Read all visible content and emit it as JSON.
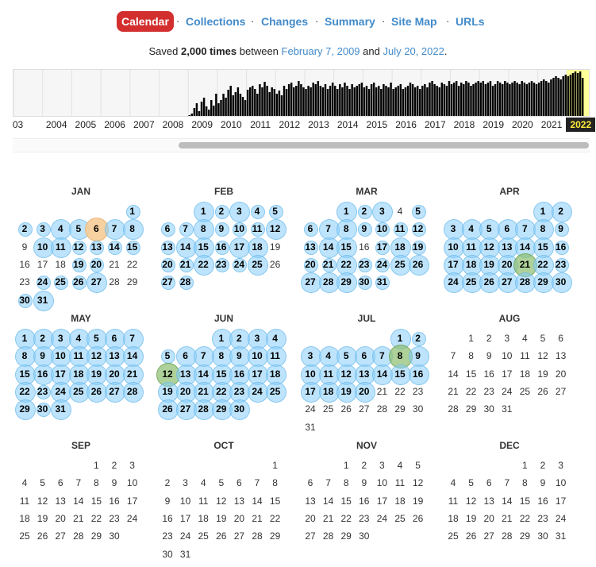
{
  "nav": {
    "items": [
      {
        "label": "Calendar",
        "active": true
      },
      {
        "label": "Collections"
      },
      {
        "label": "Changes"
      },
      {
        "label": "Summary"
      },
      {
        "label": "Site Map"
      },
      {
        "label": "URLs"
      }
    ],
    "separator": "·"
  },
  "saved": {
    "prefix": "Saved",
    "count": "2,000 times",
    "between": "between",
    "start_date": "February 7, 2009",
    "and": "and",
    "end_date": "July 20, 2022",
    "suffix": "."
  },
  "timeline": {
    "years": [
      "03",
      "2004",
      "2005",
      "2006",
      "2007",
      "2008",
      "2009",
      "2010",
      "2011",
      "2012",
      "2013",
      "2014",
      "2015",
      "2016",
      "2017",
      "2018",
      "2019",
      "2020",
      "2021",
      "2022"
    ],
    "selected_year": "2022",
    "bar_color": "#000000",
    "highlight_color": "#ffff99"
  },
  "colors": {
    "bubble_blue": "#87cefa",
    "bubble_green": "#8cbe6e",
    "bubble_orange": "#f7cc96",
    "link": "#428bca",
    "active_tab": "#d32f2f"
  },
  "calendar": {
    "months": [
      {
        "name": "JAN",
        "start": 6,
        "days": 31,
        "captured": [
          1,
          2,
          3,
          4,
          5,
          6,
          7,
          8,
          10,
          11,
          12,
          13,
          14,
          15,
          19,
          20,
          24,
          25,
          26,
          27,
          30,
          31
        ],
        "big": [
          6,
          4,
          5,
          7,
          8,
          10,
          11,
          27,
          31
        ],
        "green": [],
        "orange": [
          6
        ]
      },
      {
        "name": "FEB",
        "start": 2,
        "days": 28,
        "captured": [
          1,
          2,
          3,
          4,
          5,
          6,
          7,
          8,
          9,
          10,
          11,
          12,
          13,
          14,
          15,
          16,
          17,
          18,
          20,
          21,
          22,
          23,
          24,
          25,
          27,
          28
        ],
        "big": [
          1,
          3,
          8,
          12,
          14,
          15,
          17,
          18,
          22,
          25
        ],
        "green": [],
        "orange": []
      },
      {
        "name": "MAR",
        "start": 2,
        "days": 31,
        "captured": [
          1,
          2,
          3,
          5,
          6,
          7,
          8,
          9,
          10,
          11,
          12,
          13,
          14,
          15,
          17,
          18,
          19,
          20,
          21,
          22,
          23,
          24,
          25,
          26,
          27,
          28,
          29,
          30,
          31
        ],
        "big": [
          1,
          3,
          7,
          8,
          14,
          15,
          18,
          22,
          25,
          26,
          27,
          28,
          29
        ],
        "green": [],
        "orange": []
      },
      {
        "name": "APR",
        "start": 5,
        "days": 30,
        "captured": [
          1,
          2,
          3,
          4,
          5,
          6,
          7,
          8,
          9,
          10,
          11,
          12,
          13,
          14,
          15,
          16,
          17,
          18,
          19,
          20,
          21,
          22,
          23,
          24,
          25,
          26,
          27,
          28,
          29,
          30
        ],
        "big": [
          1,
          2,
          3,
          4,
          5,
          6,
          7,
          8,
          10,
          11,
          12,
          13,
          14,
          15,
          17,
          18,
          19,
          20,
          21,
          22,
          24,
          25,
          26,
          27,
          28,
          29,
          30
        ],
        "green": [
          21
        ],
        "orange": []
      },
      {
        "name": "MAY",
        "start": 0,
        "days": 31,
        "captured": [
          1,
          2,
          3,
          4,
          5,
          6,
          7,
          8,
          9,
          10,
          11,
          12,
          13,
          14,
          15,
          16,
          17,
          18,
          19,
          20,
          21,
          22,
          23,
          24,
          25,
          26,
          27,
          28,
          29,
          30,
          31
        ],
        "big": [
          1,
          2,
          3,
          4,
          5,
          6,
          7,
          8,
          9,
          10,
          11,
          12,
          13,
          14,
          15,
          16,
          17,
          18,
          19,
          20,
          21,
          22,
          24,
          25,
          26,
          27,
          28,
          29,
          31
        ],
        "green": [],
        "orange": []
      },
      {
        "name": "JUN",
        "start": 3,
        "days": 30,
        "captured": [
          1,
          2,
          3,
          4,
          5,
          6,
          7,
          8,
          9,
          10,
          11,
          12,
          13,
          14,
          15,
          16,
          17,
          18,
          19,
          20,
          21,
          22,
          23,
          24,
          25,
          26,
          27,
          28,
          29,
          30
        ],
        "big": [
          1,
          2,
          3,
          4,
          6,
          7,
          8,
          9,
          10,
          11,
          12,
          13,
          14,
          15,
          16,
          17,
          18,
          19,
          20,
          21,
          22,
          23,
          24,
          25,
          26,
          27,
          28,
          29,
          30
        ],
        "green": [
          12
        ],
        "orange": []
      },
      {
        "name": "JUL",
        "start": 5,
        "days": 31,
        "captured": [
          1,
          2,
          3,
          4,
          5,
          6,
          7,
          8,
          9,
          10,
          11,
          12,
          13,
          14,
          15,
          16,
          17,
          18,
          19,
          20
        ],
        "big": [
          1,
          3,
          4,
          5,
          6,
          7,
          8,
          9,
          10,
          11,
          12,
          13,
          14,
          15,
          16,
          17,
          18,
          19,
          20
        ],
        "green": [
          8
        ],
        "orange": []
      },
      {
        "name": "AUG",
        "start": 1,
        "days": 31,
        "captured": [],
        "big": [],
        "green": [],
        "orange": []
      },
      {
        "name": "SEP",
        "start": 4,
        "days": 30,
        "captured": [],
        "big": [],
        "green": [],
        "orange": []
      },
      {
        "name": "OCT",
        "start": 6,
        "days": 31,
        "captured": [],
        "big": [],
        "green": [],
        "orange": []
      },
      {
        "name": "NOV",
        "start": 2,
        "days": 30,
        "captured": [],
        "big": [],
        "green": [],
        "orange": []
      },
      {
        "name": "DEC",
        "start": 4,
        "days": 31,
        "captured": [],
        "big": [],
        "green": [],
        "orange": []
      }
    ]
  }
}
